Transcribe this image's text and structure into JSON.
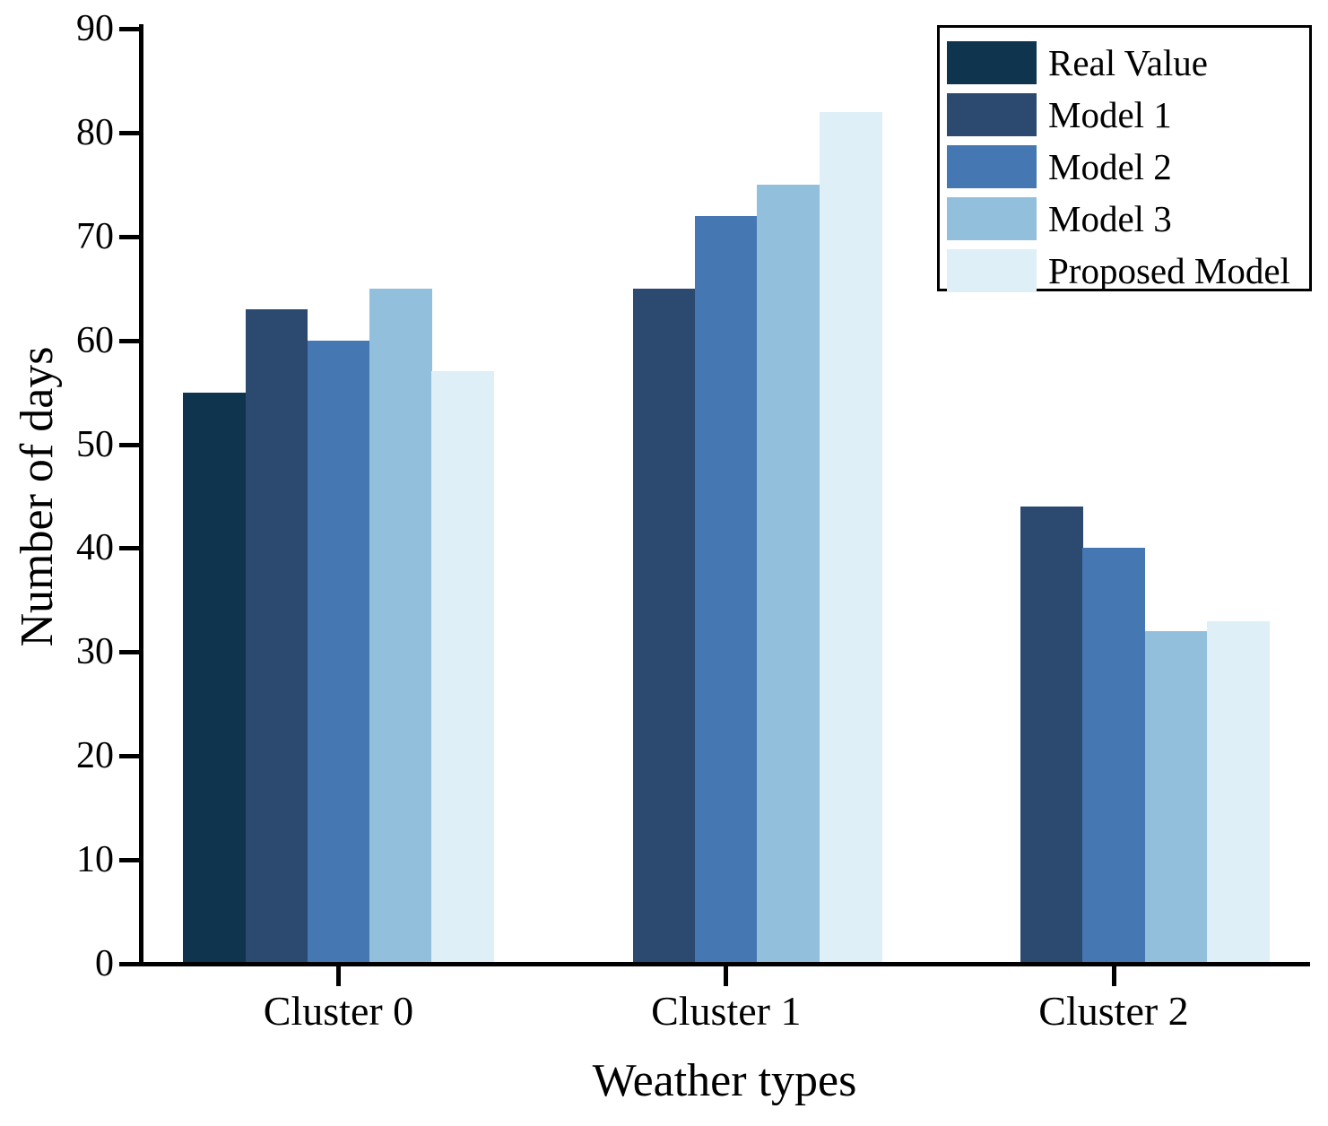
{
  "chart_data": {
    "type": "bar",
    "title": "",
    "xlabel": "Weather types",
    "ylabel": "Number of days",
    "categories": [
      "Cluster 0",
      "Cluster 1",
      "Cluster 2"
    ],
    "series": [
      {
        "name": "Real Value",
        "color": "#0F344E",
        "values": [
          55,
          null,
          null
        ]
      },
      {
        "name": "Model 1",
        "color": "#2C4A70",
        "values": [
          63,
          65,
          44
        ]
      },
      {
        "name": "Model 2",
        "color": "#4577B3",
        "values": [
          60,
          72,
          40
        ]
      },
      {
        "name": "Model 3",
        "color": "#92BFDB",
        "values": [
          65,
          75,
          32
        ]
      },
      {
        "name": "Proposed Model",
        "color": "#DEEFF7",
        "values": [
          57,
          82,
          33
        ]
      }
    ],
    "ylim": [
      0,
      90
    ],
    "yticks": [
      0,
      10,
      20,
      30,
      40,
      50,
      60,
      70,
      80,
      90
    ],
    "legend_position": "upper right",
    "grid": false,
    "axis_color": "#000000",
    "background_color": "#FFFFFF"
  }
}
